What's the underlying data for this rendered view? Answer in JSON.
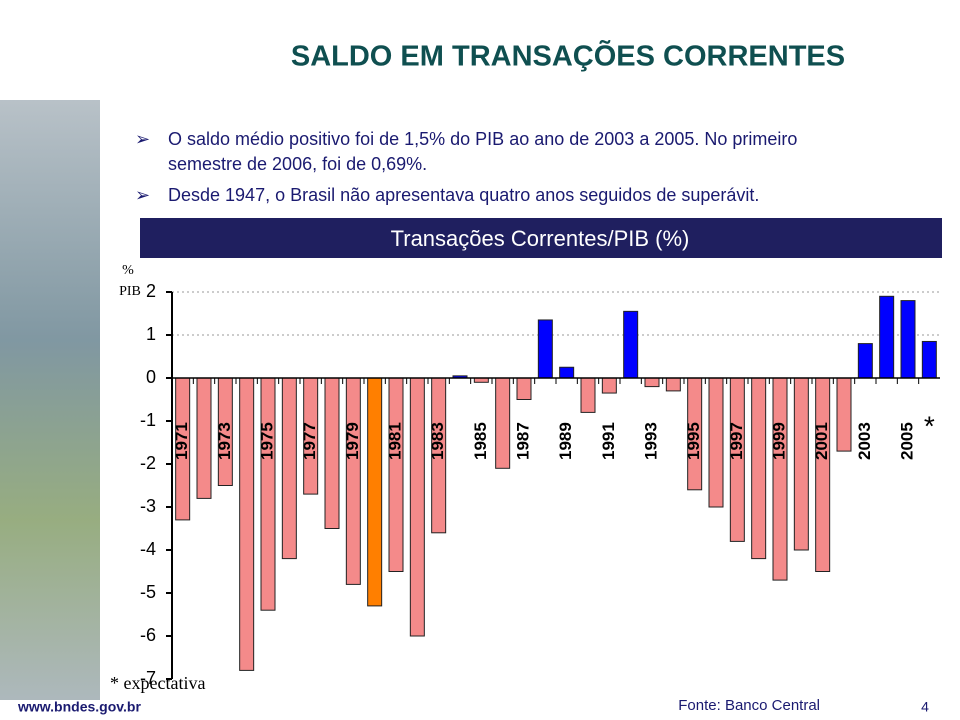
{
  "header": {
    "title": "SALDO EM TRANSAÇÕES CORRENTES"
  },
  "bullets": [
    "O saldo médio positivo foi de 1,5% do PIB ao ano de 2003 a 2005. No primeiro semestre de 2006, foi de 0,69%.",
    "Desde 1947, o Brasil não apresentava quatro anos seguidos de superávit."
  ],
  "chart_data": {
    "type": "bar",
    "title": "Transações Correntes/PIB (%)",
    "y_label": [
      "%",
      "PIB"
    ],
    "categories": [
      "1971",
      null,
      "1973",
      null,
      "1975",
      null,
      "1977",
      null,
      "1979",
      null,
      "1981",
      null,
      "1983",
      null,
      "1985",
      null,
      "1987",
      null,
      "1989",
      null,
      "1991",
      null,
      "1993",
      null,
      "1995",
      null,
      "1997",
      null,
      "1999",
      null,
      "2001",
      null,
      "2003",
      null,
      "2005",
      "*"
    ],
    "values": [
      -3.3,
      -2.8,
      -2.5,
      -6.8,
      -5.4,
      -4.2,
      -2.7,
      -3.5,
      -4.8,
      -5.3,
      -4.5,
      -6.0,
      -3.6,
      0.05,
      -0.1,
      -2.1,
      -0.5,
      1.35,
      0.25,
      -0.8,
      -0.35,
      1.55,
      -0.2,
      -0.3,
      -2.6,
      -3.0,
      -3.8,
      -4.2,
      -4.7,
      -4.0,
      -4.5,
      -1.7,
      0.8,
      1.9,
      1.8,
      0.85
    ],
    "colors": [
      "#f48a8a",
      "#f48a8a",
      "#f48a8a",
      "#f48a8a",
      "#f48a8a",
      "#f48a8a",
      "#f48a8a",
      "#f48a8a",
      "#f48a8a",
      "#ff7f00",
      "#f48a8a",
      "#f48a8a",
      "#f48a8a",
      "#0000ff",
      "#f48a8a",
      "#f48a8a",
      "#f48a8a",
      "#0000ff",
      "#0000ff",
      "#f48a8a",
      "#f48a8a",
      "#0000ff",
      "#f48a8a",
      "#f48a8a",
      "#f48a8a",
      "#f48a8a",
      "#f48a8a",
      "#f48a8a",
      "#f48a8a",
      "#f48a8a",
      "#f48a8a",
      "#f48a8a",
      "#0000ff",
      "#0000ff",
      "#0000ff",
      "#0000ff"
    ],
    "ylim": [
      -7,
      2
    ],
    "yticks": [
      -7,
      -6,
      -5,
      -4,
      -3,
      -2,
      -1,
      0,
      1,
      2
    ],
    "grid": true,
    "note": "* expectativa",
    "source": "Fonte: Banco Central"
  },
  "footer": {
    "url": "www.bndes.gov.br",
    "page": "4"
  }
}
